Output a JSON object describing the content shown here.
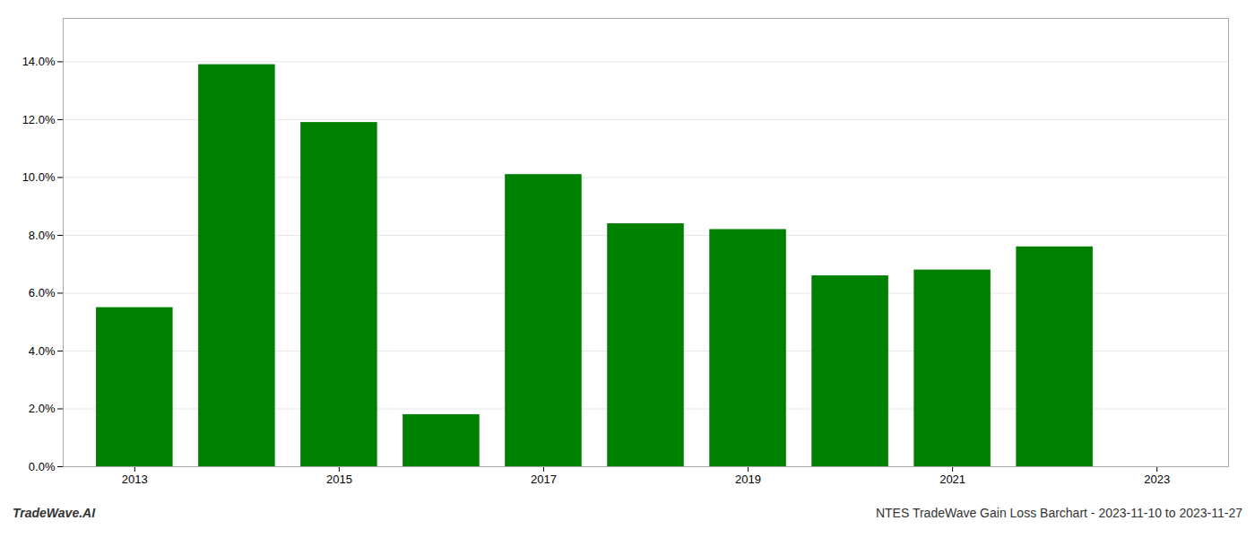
{
  "chart_data": {
    "type": "bar",
    "x": [
      2013,
      2014,
      2015,
      2016,
      2017,
      2018,
      2019,
      2020,
      2021,
      2022
    ],
    "values": [
      0.055,
      0.139,
      0.119,
      0.018,
      0.101,
      0.084,
      0.082,
      0.066,
      0.068,
      0.076
    ],
    "color": "#008000",
    "xlim": [
      2012.3,
      2023.7
    ],
    "xticks": [
      2013,
      2015,
      2017,
      2019,
      2021,
      2023
    ],
    "ylim": [
      0,
      0.155
    ],
    "yticks": [
      {
        "value": 0.0,
        "label": "0.0%"
      },
      {
        "value": 0.02,
        "label": "2.0%"
      },
      {
        "value": 0.04,
        "label": "4.0%"
      },
      {
        "value": 0.06,
        "label": "6.0%"
      },
      {
        "value": 0.08,
        "label": "8.0%"
      },
      {
        "value": 0.1,
        "label": "10.0%"
      },
      {
        "value": 0.12,
        "label": "12.0%"
      },
      {
        "value": 0.14,
        "label": "14.0%"
      }
    ],
    "grid": true,
    "annotations": [
      "TradeWave.AI",
      "NTES TradeWave Gain Loss Barchart - 2023-11-10 to 2023-11-27"
    ]
  }
}
